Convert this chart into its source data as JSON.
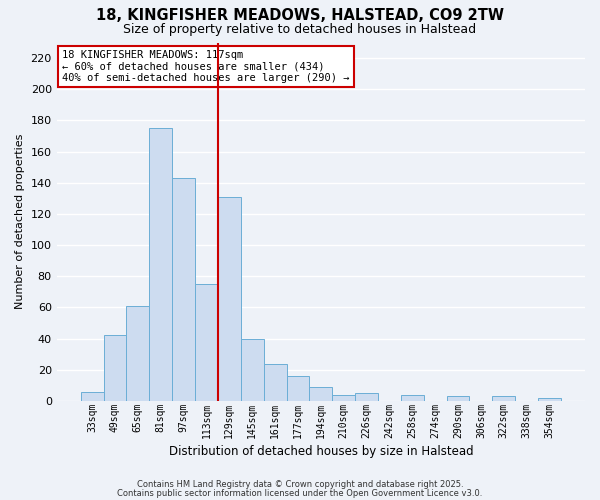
{
  "title": "18, KINGFISHER MEADOWS, HALSTEAD, CO9 2TW",
  "subtitle": "Size of property relative to detached houses in Halstead",
  "xlabel": "Distribution of detached houses by size in Halstead",
  "ylabel": "Number of detached properties",
  "categories": [
    "33sqm",
    "49sqm",
    "65sqm",
    "81sqm",
    "97sqm",
    "113sqm",
    "129sqm",
    "145sqm",
    "161sqm",
    "177sqm",
    "194sqm",
    "210sqm",
    "226sqm",
    "242sqm",
    "258sqm",
    "274sqm",
    "290sqm",
    "306sqm",
    "322sqm",
    "338sqm",
    "354sqm"
  ],
  "bar_values": [
    6,
    42,
    61,
    175,
    143,
    75,
    131,
    40,
    24,
    16,
    9,
    4,
    5,
    0,
    4,
    0,
    3,
    0,
    3,
    0,
    2
  ],
  "bar_color": "#cddcf0",
  "bar_edge_color": "#6baed6",
  "vline_pos": 5.5,
  "vline_color": "#cc0000",
  "annotation_title": "18 KINGFISHER MEADOWS: 117sqm",
  "annotation_line1": "← 60% of detached houses are smaller (434)",
  "annotation_line2": "40% of semi-detached houses are larger (290) →",
  "annotation_box_edge": "#cc0000",
  "ylim": [
    0,
    230
  ],
  "yticks": [
    0,
    20,
    40,
    60,
    80,
    100,
    120,
    140,
    160,
    180,
    200,
    220
  ],
  "footer1": "Contains HM Land Registry data © Crown copyright and database right 2025.",
  "footer2": "Contains public sector information licensed under the Open Government Licence v3.0.",
  "bg_color": "#eef2f8",
  "grid_color": "#ffffff"
}
